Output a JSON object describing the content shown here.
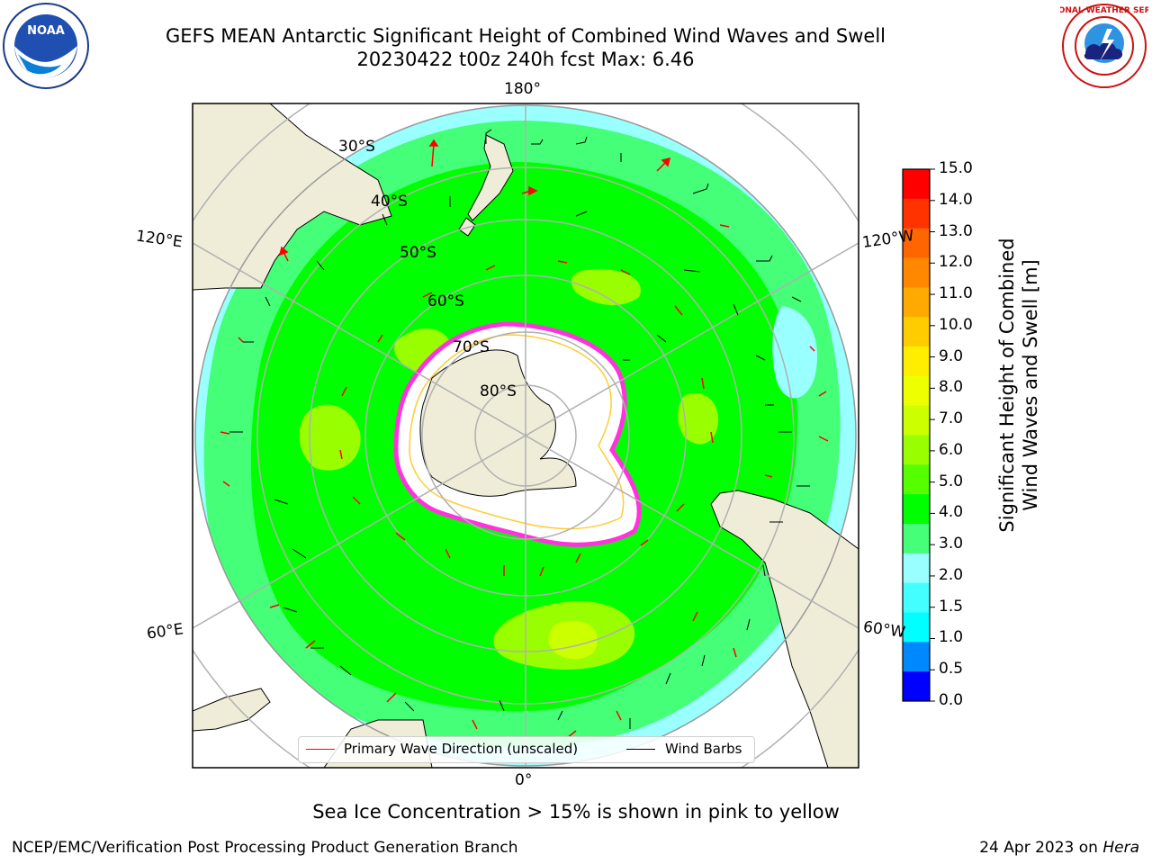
{
  "title_line1": "GEFS MEAN Antarctic Significant Height of Combined Wind Waves and Swell",
  "title_line2": "20230422 t00z 240h fcst   Max: 6.46",
  "caption": "Sea Ice Concentration > 15% is shown in pink to yellow",
  "footer_left": "NCEP/EMC/Verification Post Processing Product Generation Branch",
  "footer_right_prefix": "24 Apr 2023 on ",
  "footer_right_host": "Hera",
  "logos": {
    "left": "noaa-logo",
    "left_text": "NOAA",
    "right": "nws-logo",
    "right_ring_text": "NATIONAL WEATHER SERVICE"
  },
  "longitude_labels": {
    "top": "180°",
    "bottom": "0°",
    "upper_left": "120°E",
    "upper_right": "120°W",
    "lower_left": "60°E",
    "lower_right": "60°W"
  },
  "latitude_labels": [
    "30°S",
    "40°S",
    "50°S",
    "60°S",
    "70°S",
    "80°S"
  ],
  "legend": {
    "wave": "Primary Wave Direction (unscaled)",
    "barb": "Wind Barbs",
    "wave_color": "#ff0000",
    "barb_color": "#000000"
  },
  "colorbar": {
    "label_line1": "Significant Height of Combined",
    "label_line2": "Wind Waves and Swell [m]",
    "ticks": [
      "15.0",
      "14.0",
      "13.0",
      "12.0",
      "11.0",
      "10.0",
      "9.0",
      "8.0",
      "7.0",
      "6.0",
      "5.0",
      "4.0",
      "3.0",
      "2.0",
      "1.5",
      "1.0",
      "0.5",
      "0.0"
    ],
    "colors_top_to_bottom": [
      "#ff0000",
      "#ff3300",
      "#ff6600",
      "#ff8800",
      "#ffaa00",
      "#ffcc00",
      "#ffee00",
      "#eeff00",
      "#ccff00",
      "#99ff00",
      "#55ff00",
      "#00ff00",
      "#44ff77",
      "#99ffff",
      "#44ffff",
      "#00ffff",
      "#0088ff",
      "#0000ff"
    ]
  },
  "colors": {
    "land": "#efedd8",
    "ice": "#ffffff",
    "sea_ice_edge": "#ff33dd"
  }
}
